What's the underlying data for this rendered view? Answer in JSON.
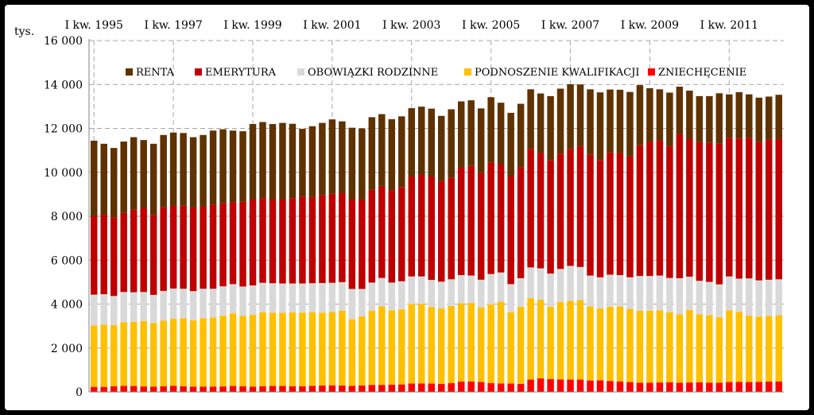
{
  "chart_data": {
    "type": "bar",
    "stacked": true,
    "unit_label": "tys.",
    "ylim": [
      0,
      16000
    ],
    "yticks": [
      "0",
      "2 000",
      "4 000",
      "6 000",
      "8 000",
      "10 000",
      "12 000",
      "14 000",
      "16 000"
    ],
    "ytick_values": [
      0,
      2000,
      4000,
      6000,
      8000,
      10000,
      12000,
      14000,
      16000
    ],
    "top_axis_labels": [
      "I kw. 1995",
      "I kw. 1997",
      "I kw. 1999",
      "I kw. 2001",
      "I kw. 2003",
      "I kw. 2005",
      "I kw. 2007",
      "I kw. 2009",
      "I kw. 2011"
    ],
    "top_axis_label_indices": [
      0,
      8,
      16,
      24,
      32,
      40,
      48,
      56,
      64
    ],
    "grid": true,
    "legend_position": "top",
    "legend_order": [
      "RENTA",
      "EMERYTURA",
      "OBOWIĄZKI RODZINNE",
      "PODNOSZENIE KWALIFIKACJI",
      "ZNIECHĘCENIE"
    ],
    "series": [
      {
        "name": "ZNIECHĘCENIE",
        "color": "#ff0000",
        "values": [
          230,
          230,
          260,
          280,
          270,
          250,
          240,
          260,
          280,
          260,
          240,
          240,
          240,
          250,
          270,
          260,
          240,
          260,
          270,
          270,
          260,
          260,
          280,
          290,
          300,
          290,
          280,
          300,
          320,
          320,
          330,
          340,
          380,
          390,
          380,
          370,
          400,
          470,
          480,
          450,
          400,
          390,
          380,
          370,
          560,
          620,
          580,
          570,
          560,
          560,
          520,
          530,
          500,
          480,
          450,
          420,
          420,
          430,
          440,
          420,
          430,
          440,
          420,
          420,
          450,
          460,
          450,
          460,
          470,
          480
        ]
      },
      {
        "name": "PODNOSZENIE KWALIFIKACJI",
        "color": "#ffc000",
        "values": [
          2800,
          2830,
          2790,
          2900,
          2920,
          2980,
          2900,
          2980,
          3050,
          3090,
          3020,
          3110,
          3150,
          3220,
          3310,
          3200,
          3270,
          3370,
          3340,
          3330,
          3370,
          3350,
          3340,
          3320,
          3340,
          3410,
          3030,
          3140,
          3380,
          3580,
          3390,
          3420,
          3620,
          3620,
          3490,
          3440,
          3510,
          3570,
          3570,
          3400,
          3580,
          3720,
          3250,
          3510,
          3710,
          3580,
          3300,
          3530,
          3590,
          3620,
          3370,
          3280,
          3380,
          3410,
          3330,
          3280,
          3280,
          3280,
          3190,
          3110,
          3300,
          3100,
          3080,
          2980,
          3270,
          3180,
          3030,
          2970,
          2990,
          3010
        ]
      },
      {
        "name": "OBOWIĄZKI RODZINNE",
        "color": "#d9d9d9",
        "values": [
          1400,
          1390,
          1320,
          1370,
          1350,
          1320,
          1280,
          1360,
          1380,
          1350,
          1330,
          1350,
          1310,
          1340,
          1330,
          1340,
          1340,
          1340,
          1340,
          1340,
          1310,
          1330,
          1330,
          1350,
          1330,
          1300,
          1380,
          1250,
          1280,
          1290,
          1260,
          1280,
          1260,
          1250,
          1230,
          1210,
          1220,
          1280,
          1250,
          1260,
          1390,
          1330,
          1280,
          1300,
          1400,
          1430,
          1510,
          1500,
          1590,
          1510,
          1410,
          1410,
          1460,
          1430,
          1440,
          1580,
          1580,
          1590,
          1560,
          1650,
          1520,
          1520,
          1510,
          1500,
          1540,
          1520,
          1690,
          1650,
          1650,
          1640
        ]
      },
      {
        "name": "EMERYTURA",
        "color": "#c00000",
        "values": [
          3570,
          3620,
          3580,
          3600,
          3760,
          3830,
          3640,
          3810,
          3780,
          3780,
          3810,
          3750,
          3830,
          3780,
          3720,
          3860,
          3910,
          3840,
          3810,
          3820,
          3880,
          3960,
          3930,
          4010,
          4050,
          4050,
          4070,
          4050,
          4220,
          4190,
          4200,
          4290,
          4550,
          4640,
          4710,
          4580,
          4630,
          4890,
          4990,
          4870,
          5080,
          4930,
          4900,
          5050,
          5400,
          5250,
          5150,
          5250,
          5330,
          5500,
          5500,
          5340,
          5560,
          5560,
          5510,
          5950,
          6120,
          6160,
          6000,
          6550,
          6280,
          6310,
          6330,
          6400,
          6300,
          6380,
          6400,
          6300,
          6380,
          6380
        ]
      },
      {
        "name": "RENTA",
        "color": "#5f3200",
        "values": [
          3440,
          3230,
          3160,
          3250,
          3300,
          3090,
          3240,
          3290,
          3320,
          3310,
          3200,
          3250,
          3370,
          3370,
          3270,
          3210,
          3440,
          3480,
          3440,
          3490,
          3390,
          3080,
          3220,
          3280,
          3390,
          3270,
          3270,
          3260,
          3310,
          3270,
          3240,
          3220,
          3110,
          3090,
          3090,
          2970,
          3110,
          3020,
          2990,
          2930,
          2970,
          2800,
          2900,
          2890,
          2710,
          2710,
          2930,
          2960,
          2940,
          2810,
          2980,
          3080,
          2870,
          2880,
          2930,
          2740,
          2430,
          2320,
          2440,
          2170,
          2190,
          2100,
          2130,
          2300,
          1990,
          2110,
          1980,
          2020,
          1960,
          2020
        ]
      }
    ]
  }
}
